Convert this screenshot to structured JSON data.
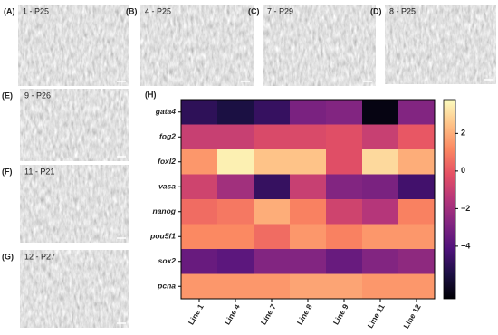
{
  "panels": [
    {
      "tag": "(A)",
      "label": "1 - P25"
    },
    {
      "tag": "(B)",
      "label": "4 - P25"
    },
    {
      "tag": "(C)",
      "label": "7 - P29"
    },
    {
      "tag": "(D)",
      "label": "8 - P25"
    },
    {
      "tag": "(E)",
      "label": "9 - P26"
    },
    {
      "tag": "(F)",
      "label": "11 - P21"
    },
    {
      "tag": "(G)",
      "label": "12 - P27"
    }
  ],
  "chart_data": {
    "type": "heatmap",
    "tag": "(H)",
    "rows": [
      "gata4",
      "fog2",
      "foxl2",
      "vasa",
      "nanog",
      "pou5f1",
      "sox2",
      "pcna"
    ],
    "columns": [
      "Line 1",
      "Line 4",
      "Line 7",
      "Line 8",
      "Line 9",
      "Line 11",
      "Line 12"
    ],
    "values": [
      [
        -5,
        -5.5,
        -4.8,
        -3,
        -2.8,
        -6.5,
        -2.8
      ],
      [
        -1,
        -1,
        -0.5,
        -0.5,
        -0.3,
        -1,
        0
      ],
      [
        1.5,
        3.5,
        2.5,
        2.5,
        -0.3,
        3,
        2
      ],
      [
        -0.8,
        -2,
        -4.8,
        -1,
        -2.8,
        -3,
        -4.5
      ],
      [
        0.5,
        0.8,
        2,
        1,
        -0.8,
        -1.5,
        1
      ],
      [
        1.2,
        1.2,
        0.5,
        1.5,
        1,
        1.5,
        1.5
      ],
      [
        -3.5,
        -3.8,
        -2.8,
        -2.8,
        -3.5,
        -2.8,
        -2.5
      ],
      [
        1.5,
        1.5,
        1.5,
        1.8,
        1.8,
        1.5,
        1.5
      ]
    ],
    "colormap": "magma",
    "zlim": [
      -6.8,
      3.8
    ],
    "zticks": [
      {
        "value": -4,
        "label": "−4"
      },
      {
        "value": -2,
        "label": "−2"
      },
      0,
      2
    ]
  }
}
